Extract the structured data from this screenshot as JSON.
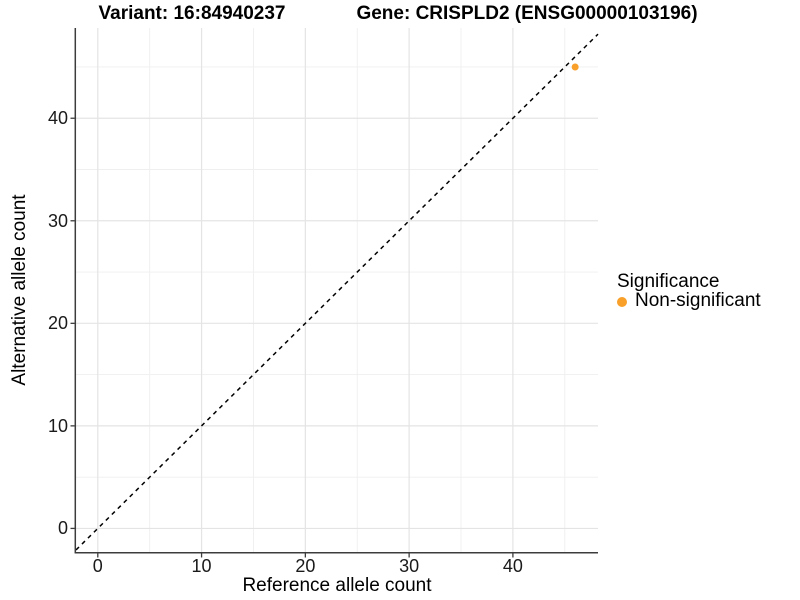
{
  "header": {
    "variant_title": "Variant: 16:84940237",
    "gene_title": "Gene: CRISPLD2 (ENSG00000103196)"
  },
  "chart_data": {
    "type": "scatter",
    "xlabel": "Reference allele count",
    "ylabel": "Alternative allele count",
    "xlim": [
      -2.1,
      48.2
    ],
    "ylim": [
      -2.3,
      48.8
    ],
    "x_ticks": [
      0,
      10,
      20,
      30,
      40
    ],
    "y_ticks": [
      0,
      10,
      20,
      30,
      40
    ],
    "x_minor": [
      5,
      15,
      25,
      35,
      45
    ],
    "y_minor": [
      5,
      15,
      25,
      35,
      45
    ],
    "grid": true,
    "identity_line": {
      "style": "dashed",
      "equation": "y = x",
      "color": "#000000"
    },
    "series": [
      {
        "name": "Non-significant",
        "color": "#F8A029",
        "points": [
          {
            "x": 46,
            "y": 45
          }
        ]
      }
    ],
    "legend": {
      "title": "Significance",
      "position": "right",
      "items": [
        {
          "label": "Non-significant",
          "color": "#F8A029"
        }
      ]
    },
    "colors": {
      "background": "#FFFFFF",
      "grid_major": "#E4E4E4",
      "grid_minor": "#EFEFEF",
      "axis": "#3C3C3C",
      "tick_text": "#1a1a1a"
    }
  }
}
